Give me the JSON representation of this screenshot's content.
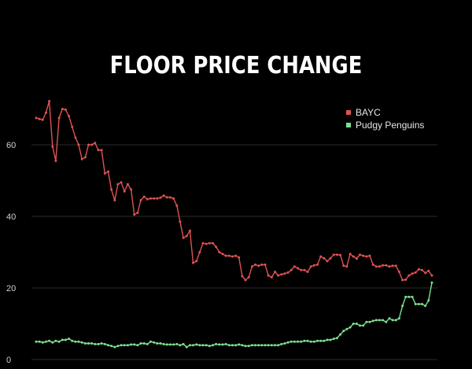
{
  "chart_data": {
    "type": "line",
    "title": "FLOOR PRICE CHANGE",
    "xlabel": "",
    "ylabel": "",
    "ylim": [
      0,
      75
    ],
    "y_ticks": [
      0,
      20,
      40,
      60
    ],
    "grid": true,
    "legend_position": "top-right",
    "series": [
      {
        "name": "BAYC",
        "color": "#e05252",
        "values": [
          67.5,
          67.2,
          67,
          69,
          72.2,
          59.5,
          55.5,
          67.5,
          70,
          69.8,
          68,
          65,
          62,
          60,
          56,
          56.5,
          60,
          60,
          60.5,
          58.5,
          58.5,
          52,
          52.5,
          47.5,
          44.5,
          49,
          49.5,
          47,
          49,
          47.5,
          40.5,
          41,
          44.5,
          45.5,
          44.8,
          45,
          45,
          45,
          45.2,
          45.8,
          45.3,
          45.3,
          45,
          43,
          38.5,
          34,
          34.5,
          36,
          27,
          27.5,
          30,
          32.5,
          32.3,
          32.5,
          32.5,
          31.5,
          30,
          29.5,
          29,
          29,
          28.8,
          29,
          28.5,
          23.3,
          22.2,
          23,
          26,
          26.5,
          26.2,
          26.5,
          26.5,
          23.5,
          23,
          24.5,
          23.5,
          23.8,
          24,
          24.3,
          25,
          26,
          25.5,
          25,
          25,
          24.5,
          26,
          26.3,
          26.5,
          28.8,
          28.3,
          27.5,
          28.3,
          29.3,
          29.3,
          29.2,
          26.2,
          26,
          29.5,
          28.8,
          28.2,
          29.3,
          29,
          28.8,
          29,
          26.5,
          26,
          26,
          26.3,
          26.3,
          26,
          26.2,
          26.2,
          24.5,
          22.2,
          22.3,
          23.5,
          24,
          24.3,
          25.2,
          25,
          24.2,
          24.8,
          23.5
        ]
      },
      {
        "name": "Pudgy Penguins",
        "color": "#7ee08f",
        "values": [
          5,
          5,
          4.8,
          5,
          5.2,
          4.8,
          5.2,
          5,
          5.5,
          5.5,
          5.8,
          5.2,
          5,
          5,
          4.8,
          4.5,
          4.5,
          4.5,
          4.3,
          4.3,
          4.5,
          4.3,
          4,
          3.8,
          3.5,
          3.8,
          4,
          4,
          4,
          4.2,
          4.2,
          4,
          4.5,
          4.5,
          4.3,
          5,
          4.8,
          4.5,
          4.5,
          4.3,
          4.2,
          4.2,
          4.2,
          4.3,
          4,
          4.3,
          3.5,
          4,
          4,
          4.2,
          4,
          4,
          4,
          3.8,
          4,
          4.3,
          4.2,
          4.2,
          4.3,
          4,
          4,
          4,
          4.2,
          4,
          3.8,
          3.8,
          4,
          4,
          4,
          4,
          4,
          4,
          4,
          4,
          4,
          4.3,
          4.5,
          4.8,
          5,
          5,
          5,
          5,
          5.2,
          5.2,
          5,
          5,
          5.2,
          5.2,
          5.2,
          5.5,
          5.5,
          5.8,
          6,
          7,
          8,
          8.5,
          9,
          10,
          10,
          9.5,
          9.5,
          10.5,
          10.5,
          10.8,
          11,
          11,
          11,
          10.5,
          11.5,
          11,
          11,
          11.5,
          15,
          17.5,
          17.5,
          17.5,
          15.5,
          15.5,
          15.5,
          15,
          16.5,
          21.5
        ]
      }
    ]
  }
}
